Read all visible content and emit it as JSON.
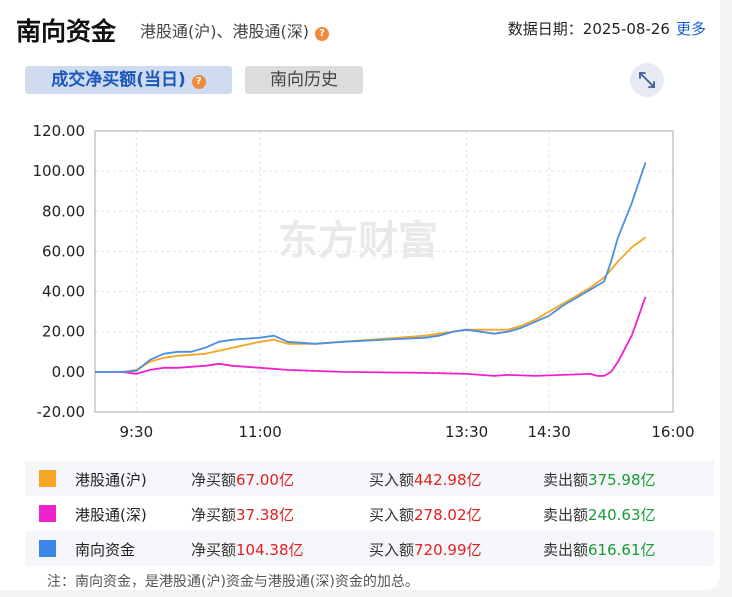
{
  "header": {
    "title": "南向资金",
    "subtitle": "港股通(沪)、港股通(深)",
    "help_glyph": "?",
    "date_label": "数据日期：",
    "date_value": "2025-08-26",
    "more_label": "更多"
  },
  "tabs": [
    {
      "label": "成交净买额(当日)",
      "active": true
    },
    {
      "label": "南向历史",
      "active": false
    }
  ],
  "expand_icon": "expand-arrows-icon",
  "watermark": "东方财富",
  "chart_data": {
    "type": "line",
    "ylim": [
      -20,
      120
    ],
    "yticks": [
      -20,
      0,
      20,
      40,
      60,
      80,
      100,
      120
    ],
    "ytick_labels": [
      "-20.00",
      "0.00",
      "20.00",
      "40.00",
      "60.00",
      "80.00",
      "100.00",
      "120.00"
    ],
    "xlim": [
      "09:00",
      "16:00"
    ],
    "xticks": [
      "09:30",
      "11:00",
      "13:30",
      "14:30",
      "16:00"
    ],
    "xtick_labels": [
      "9:30",
      "11:00",
      "13:30",
      "14:30",
      "16:00"
    ],
    "grid": true,
    "series": [
      {
        "name": "港股通(沪)",
        "color": "#f5a623",
        "points": [
          [
            "09:00",
            0
          ],
          [
            "09:20",
            0
          ],
          [
            "09:30",
            1
          ],
          [
            "09:40",
            5
          ],
          [
            "09:50",
            7
          ],
          [
            "10:00",
            8
          ],
          [
            "10:20",
            9
          ],
          [
            "10:40",
            12
          ],
          [
            "11:00",
            15
          ],
          [
            "11:10",
            16
          ],
          [
            "11:20",
            14
          ],
          [
            "11:40",
            14
          ],
          [
            "12:00",
            15
          ],
          [
            "13:00",
            18
          ],
          [
            "13:10",
            19
          ],
          [
            "13:20",
            20
          ],
          [
            "13:30",
            21
          ],
          [
            "13:40",
            21
          ],
          [
            "13:50",
            21
          ],
          [
            "14:00",
            21
          ],
          [
            "14:10",
            23
          ],
          [
            "14:20",
            26
          ],
          [
            "14:30",
            30
          ],
          [
            "14:40",
            34
          ],
          [
            "14:50",
            38
          ],
          [
            "15:00",
            42
          ],
          [
            "15:10",
            47
          ],
          [
            "15:20",
            55
          ],
          [
            "15:30",
            62
          ],
          [
            "15:40",
            67
          ]
        ]
      },
      {
        "name": "港股通(深)",
        "color": "#ee22cc",
        "points": [
          [
            "09:00",
            0
          ],
          [
            "09:20",
            0
          ],
          [
            "09:30",
            -1
          ],
          [
            "09:40",
            1
          ],
          [
            "09:50",
            2
          ],
          [
            "10:00",
            2
          ],
          [
            "10:20",
            3
          ],
          [
            "10:30",
            4
          ],
          [
            "10:40",
            3
          ],
          [
            "11:00",
            2
          ],
          [
            "11:20",
            1
          ],
          [
            "11:40",
            0.5
          ],
          [
            "12:00",
            0
          ],
          [
            "13:00",
            -0.5
          ],
          [
            "13:30",
            -1
          ],
          [
            "13:40",
            -1.5
          ],
          [
            "13:50",
            -2
          ],
          [
            "14:00",
            -1.5
          ],
          [
            "14:20",
            -2
          ],
          [
            "14:40",
            -1.5
          ],
          [
            "15:00",
            -1
          ],
          [
            "15:05",
            -2
          ],
          [
            "15:10",
            -2
          ],
          [
            "15:15",
            0
          ],
          [
            "15:20",
            5
          ],
          [
            "15:30",
            18
          ],
          [
            "15:40",
            37.38
          ]
        ]
      },
      {
        "name": "南向资金",
        "color": "#4a8fe0",
        "points": [
          [
            "09:00",
            0
          ],
          [
            "09:20",
            0
          ],
          [
            "09:30",
            0.5
          ],
          [
            "09:40",
            6
          ],
          [
            "09:50",
            9
          ],
          [
            "10:00",
            10
          ],
          [
            "10:10",
            10
          ],
          [
            "10:20",
            12
          ],
          [
            "10:30",
            15
          ],
          [
            "10:40",
            16
          ],
          [
            "11:00",
            17
          ],
          [
            "11:10",
            18
          ],
          [
            "11:20",
            15
          ],
          [
            "11:40",
            14
          ],
          [
            "12:00",
            15
          ],
          [
            "13:00",
            17
          ],
          [
            "13:10",
            18
          ],
          [
            "13:20",
            20
          ],
          [
            "13:30",
            21
          ],
          [
            "13:40",
            20
          ],
          [
            "13:50",
            19
          ],
          [
            "14:00",
            20
          ],
          [
            "14:10",
            22
          ],
          [
            "14:20",
            25
          ],
          [
            "14:30",
            28
          ],
          [
            "14:40",
            33
          ],
          [
            "14:50",
            37
          ],
          [
            "15:00",
            41
          ],
          [
            "15:10",
            45
          ],
          [
            "15:15",
            55
          ],
          [
            "15:20",
            67
          ],
          [
            "15:30",
            84
          ],
          [
            "15:40",
            104.38
          ]
        ]
      }
    ]
  },
  "legend": [
    {
      "name": "港股通(沪)",
      "color": "#f5a623",
      "net_label": "净买额",
      "net_value": "67.00亿",
      "buy_label": "买入额",
      "buy_value": "442.98亿",
      "sell_label": "卖出额",
      "sell_value": "375.98亿"
    },
    {
      "name": "港股通(深)",
      "color": "#ee22cc",
      "net_label": "净买额",
      "net_value": "37.38亿",
      "buy_label": "买入额",
      "buy_value": "278.02亿",
      "sell_label": "卖出额",
      "sell_value": "240.63亿"
    },
    {
      "name": "南向资金",
      "color": "#3b86e8",
      "net_label": "净买额",
      "net_value": "104.38亿",
      "buy_label": "买入额",
      "buy_value": "720.99亿",
      "sell_label": "卖出额",
      "sell_value": "616.61亿"
    }
  ],
  "note": "注：南向资金，是港股通(沪)资金与港股通(深)资金的加总。"
}
